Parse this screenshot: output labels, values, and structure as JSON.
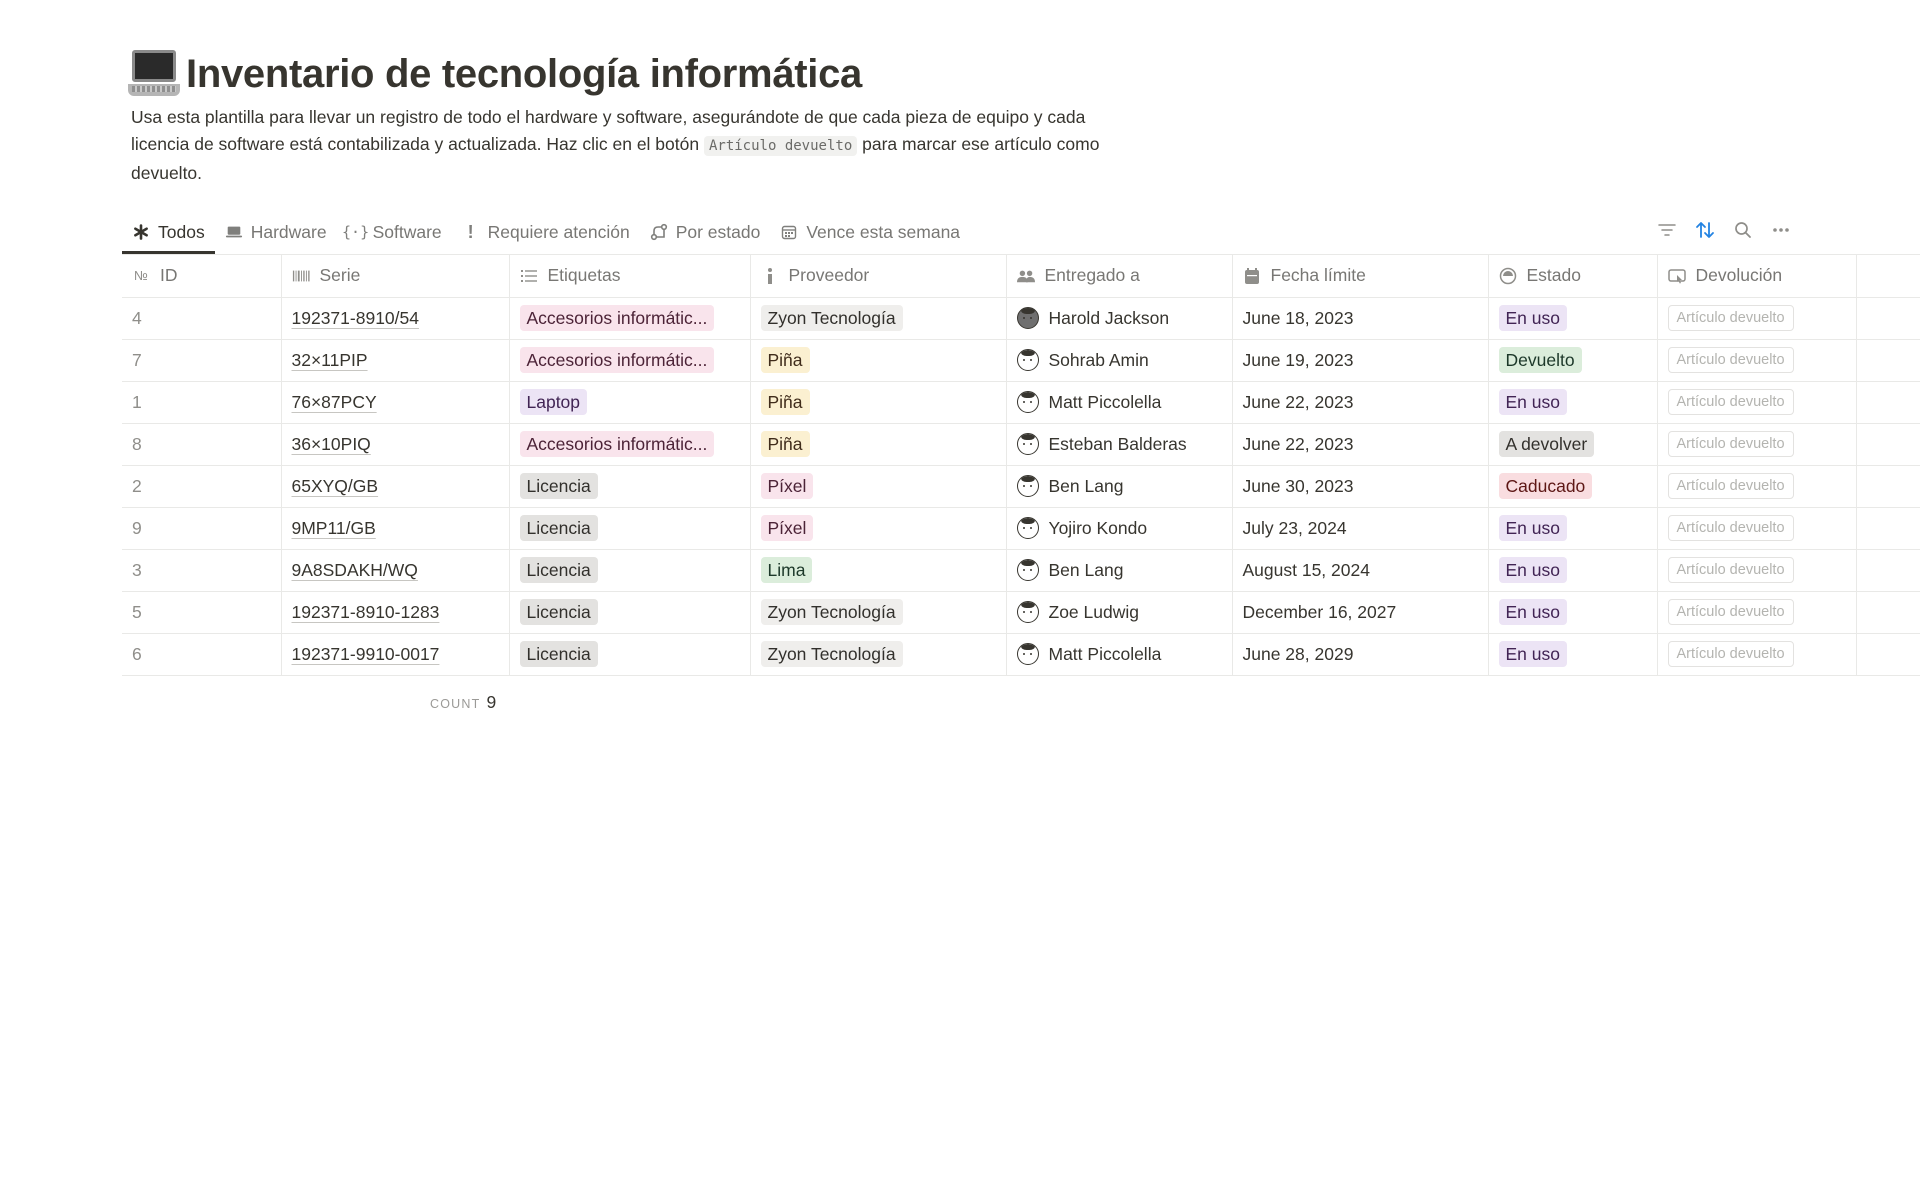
{
  "page": {
    "title": "Inventario de tecnología informática",
    "title_icon": "laptop-emoji",
    "description_before": "Usa esta plantilla para llevar un registro de todo el hardware y software, asegurándote de que cada pieza de equipo y cada licencia de software está contabilizada y actualizada. Haz clic en el botón ",
    "description_code": "Artículo devuelto",
    "description_after": " para marcar ese artículo como devuelto."
  },
  "views": [
    {
      "label": "Todos",
      "icon": "asterisk-icon",
      "active": true
    },
    {
      "label": "Hardware",
      "icon": "laptop-icon",
      "active": false
    },
    {
      "label": "Software",
      "icon": "code-braces-icon",
      "active": false
    },
    {
      "label": "Requiere atención",
      "icon": "exclamation-icon",
      "active": false
    },
    {
      "label": "Por estado",
      "icon": "route-icon",
      "active": false
    },
    {
      "label": "Vence esta semana",
      "icon": "calendar-icon",
      "active": false
    }
  ],
  "toolbar": [
    "filter-icon",
    "sort-icon",
    "search-icon",
    "more-icon"
  ],
  "columns": [
    {
      "label": "ID",
      "icon": "number-icon"
    },
    {
      "label": "Serie",
      "icon": "barcode-icon"
    },
    {
      "label": "Etiquetas",
      "icon": "list-icon"
    },
    {
      "label": "Proveedor",
      "icon": "info-icon"
    },
    {
      "label": "Entregado a",
      "icon": "people-icon"
    },
    {
      "label": "Fecha límite",
      "icon": "calendar-icon"
    },
    {
      "label": "Estado",
      "icon": "status-icon"
    },
    {
      "label": "Devolución",
      "icon": "button-icon"
    }
  ],
  "colors": {
    "pink": {
      "bg": "#f9e4ec",
      "fg": "#4c2337"
    },
    "purple": {
      "bg": "#ece4f5",
      "fg": "#412454"
    },
    "gray": {
      "bg": "#e3e2e0",
      "fg": "#32302c"
    },
    "yellow": {
      "bg": "#fbf0d1",
      "fg": "#402c1b"
    },
    "green": {
      "bg": "#dbeddb",
      "fg": "#1c3829"
    },
    "light": {
      "bg": "#efeeec",
      "fg": "#32302c"
    },
    "red": {
      "bg": "#f9dde0",
      "fg": "#5d1715"
    }
  },
  "rows": [
    {
      "id": "4",
      "serial": "192371-8910/54",
      "tag": {
        "text": "Accesorios informátic...",
        "color": "pink"
      },
      "vendor": {
        "text": "Zyon Tecnología",
        "color": "light"
      },
      "person": "Harold Jackson",
      "avatar": "dark",
      "date": "June 18, 2023",
      "status": {
        "text": "En uso",
        "color": "purple"
      },
      "return_label": "Artículo devuelto"
    },
    {
      "id": "7",
      "serial": "32×11PIP",
      "tag": {
        "text": "Accesorios informátic...",
        "color": "pink"
      },
      "vendor": {
        "text": "Piña",
        "color": "yellow"
      },
      "person": "Sohrab Amin",
      "avatar": "light",
      "date": "June 19, 2023",
      "status": {
        "text": "Devuelto",
        "color": "green"
      },
      "return_label": "Artículo devuelto"
    },
    {
      "id": "1",
      "serial": "76×87PCY",
      "tag": {
        "text": "Laptop",
        "color": "purple"
      },
      "vendor": {
        "text": "Piña",
        "color": "yellow"
      },
      "person": "Matt Piccolella",
      "avatar": "light",
      "date": "June 22, 2023",
      "status": {
        "text": "En uso",
        "color": "purple"
      },
      "return_label": "Artículo devuelto"
    },
    {
      "id": "8",
      "serial": "36×10PIQ",
      "tag": {
        "text": "Accesorios informátic...",
        "color": "pink"
      },
      "vendor": {
        "text": "Piña",
        "color": "yellow"
      },
      "person": "Esteban Balderas",
      "avatar": "light",
      "date": "June 22, 2023",
      "status": {
        "text": "A devolver",
        "color": "gray"
      },
      "return_label": "Artículo devuelto"
    },
    {
      "id": "2",
      "serial": "65XYQ/GB",
      "tag": {
        "text": "Licencia",
        "color": "gray"
      },
      "vendor": {
        "text": "Píxel",
        "color": "pink"
      },
      "person": "Ben Lang",
      "avatar": "light",
      "date": "June 30, 2023",
      "status": {
        "text": "Caducado",
        "color": "red"
      },
      "return_label": "Artículo devuelto"
    },
    {
      "id": "9",
      "serial": "9MP11/GB",
      "tag": {
        "text": "Licencia",
        "color": "gray"
      },
      "vendor": {
        "text": "Píxel",
        "color": "pink"
      },
      "person": "Yojiro Kondo",
      "avatar": "light",
      "date": "July 23, 2024",
      "status": {
        "text": "En uso",
        "color": "purple"
      },
      "return_label": "Artículo devuelto"
    },
    {
      "id": "3",
      "serial": "9A8SDAKH/WQ",
      "tag": {
        "text": "Licencia",
        "color": "gray"
      },
      "vendor": {
        "text": "Lima",
        "color": "green"
      },
      "person": "Ben Lang",
      "avatar": "light",
      "date": "August 15, 2024",
      "status": {
        "text": "En uso",
        "color": "purple"
      },
      "return_label": "Artículo devuelto"
    },
    {
      "id": "5",
      "serial": "192371-8910-1283",
      "tag": {
        "text": "Licencia",
        "color": "gray"
      },
      "vendor": {
        "text": "Zyon Tecnología",
        "color": "light"
      },
      "person": "Zoe Ludwig",
      "avatar": "light",
      "date": "December 16, 2027",
      "status": {
        "text": "En uso",
        "color": "purple"
      },
      "return_label": "Artículo devuelto"
    },
    {
      "id": "6",
      "serial": "192371-9910-0017",
      "tag": {
        "text": "Licencia",
        "color": "gray"
      },
      "vendor": {
        "text": "Zyon Tecnología",
        "color": "light"
      },
      "person": "Matt Piccolella",
      "avatar": "light",
      "date": "June 28, 2029",
      "status": {
        "text": "En uso",
        "color": "purple"
      },
      "return_label": "Artículo devuelto"
    }
  ],
  "footer": {
    "count_label": "COUNT",
    "count_value": "9"
  }
}
